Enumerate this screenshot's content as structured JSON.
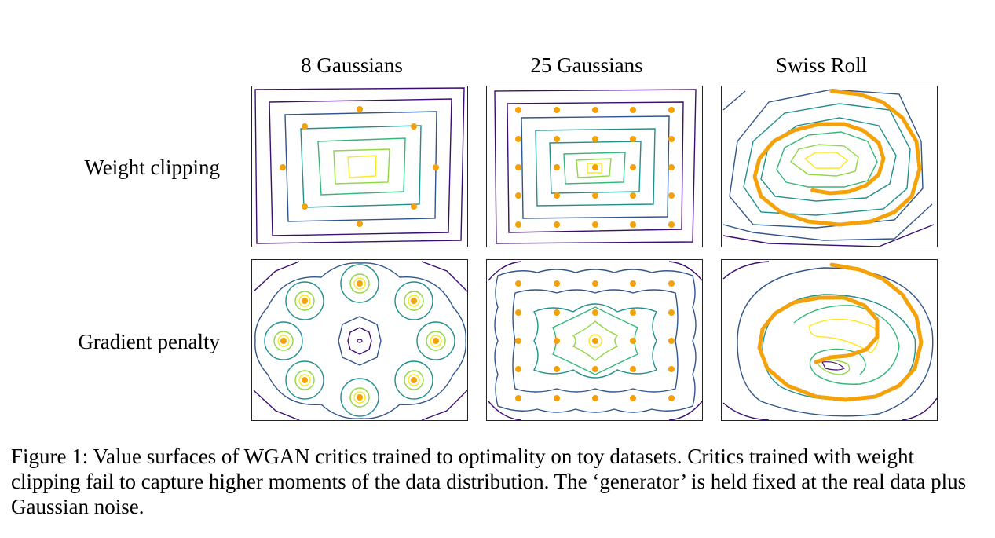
{
  "figure": {
    "columns": [
      "8 Gaussians",
      "25 Gaussians",
      "Swiss Roll"
    ],
    "rows": [
      "Weight clipping",
      "Gradient penalty"
    ],
    "caption": "Figure 1:  Value surfaces of WGAN critics trained to optimality on toy datasets. Critics trained with weight clipping fail to capture higher moments of the data distribution. The ‘generator’ is held fixed at the real data plus Gaussian noise."
  },
  "colors": {
    "data_points": "#f5a10a",
    "contour_levels": [
      "#3b0f70",
      "#31568b",
      "#21908d",
      "#35b779",
      "#90d743",
      "#fde725"
    ]
  }
}
